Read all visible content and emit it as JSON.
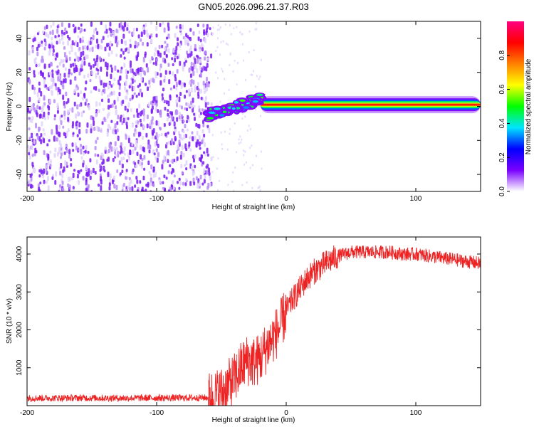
{
  "page": {
    "title": "GN05.2026.096.21.37.R03"
  },
  "chart_data": [
    {
      "type": "heatmap",
      "title": "GN05.2026.096.21.37.R03",
      "xlabel": "Height of straight line (km)",
      "ylabel": "Frequency (Hz)",
      "xlim": [
        -200,
        150
      ],
      "ylim": [
        -50,
        50
      ],
      "x_ticks": [
        "-200",
        "-100",
        "0",
        "100"
      ],
      "y_ticks": [
        "-40",
        "-20",
        "0",
        "20",
        "40"
      ],
      "colorbar": {
        "label": "Normalized spectral amplitude",
        "range": [
          0,
          1
        ],
        "ticks": [
          "0.0",
          "0.2",
          "0.4",
          "0.6",
          "0.8"
        ],
        "colormap": [
          "#ffffff",
          "#7a00ff",
          "#0000ff",
          "#00e5ff",
          "#00ff00",
          "#ffff00",
          "#ff8000",
          "#ff0000",
          "#ff0080"
        ]
      },
      "regions": [
        {
          "name": "noise",
          "x_range": [
            -200,
            -58
          ],
          "y_range": [
            -50,
            50
          ],
          "amplitude": 0.05
        },
        {
          "name": "transition",
          "x_range": [
            -60,
            -20
          ],
          "y_center": [
            -5,
            4
          ],
          "amplitude": 0.35
        },
        {
          "name": "signal line",
          "x_range": [
            -20,
            150
          ],
          "y_center": 1,
          "amplitude": 0.85
        }
      ]
    },
    {
      "type": "line",
      "xlabel": "Height of straight line (km)",
      "ylabel": "SNR (10 * v/v)",
      "xlim": [
        -200,
        150
      ],
      "ylim": [
        0,
        4450
      ],
      "x_ticks": [
        "-200",
        "-100",
        "0",
        "100"
      ],
      "y_ticks": [
        "1000",
        "2000",
        "3000",
        "4000"
      ],
      "color": "#ee2222",
      "series": [
        {
          "x": [
            -200,
            -180,
            -160,
            -140,
            -120,
            -100,
            -80,
            -60,
            -50,
            -40,
            -35,
            -30,
            -25,
            -20,
            -15,
            -10,
            -5,
            0,
            5,
            10,
            15,
            20,
            30,
            40,
            50,
            60,
            70,
            80,
            90,
            100,
            110,
            120,
            130,
            140,
            150
          ],
          "y": [
            200,
            200,
            205,
            200,
            200,
            205,
            205,
            210,
            350,
            700,
            1000,
            1200,
            1150,
            1250,
            1550,
            1800,
            2050,
            2500,
            2800,
            3050,
            3300,
            3500,
            3750,
            3950,
            4050,
            4050,
            4050,
            4050,
            4000,
            4000,
            3950,
            3900,
            3850,
            3800,
            3750
          ]
        }
      ]
    }
  ]
}
